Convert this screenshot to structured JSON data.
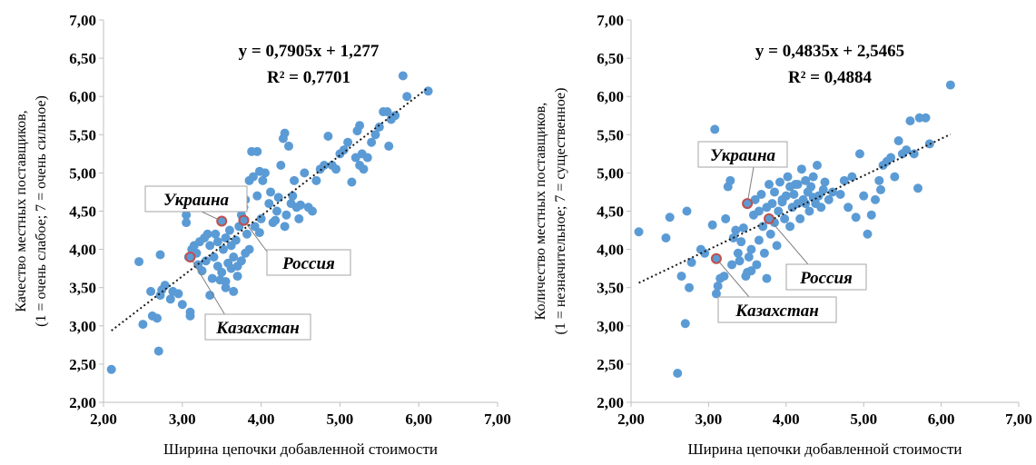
{
  "colors": {
    "point": "#5b9bd5",
    "highlight_stroke": "#c0504d",
    "trend": "#1a1a1a",
    "axis": "#bfbfbf"
  },
  "chart_data": [
    {
      "type": "scatter",
      "xlabel": "Ширина цепочки добавленной стоимости",
      "ylabel_line1": "Качество местных поставщиков,",
      "ylabel_line2": "(1 = очень слабое; 7 = очень сильное)",
      "xlim": [
        2,
        7
      ],
      "ylim": [
        2,
        7
      ],
      "xticks": [
        "2,00",
        "3,00",
        "4,00",
        "5,00",
        "6,00",
        "7,00"
      ],
      "yticks": [
        "2,00",
        "2,50",
        "3,00",
        "3,50",
        "4,00",
        "4,50",
        "5,00",
        "5,50",
        "6,00",
        "6,50",
        "7,00"
      ],
      "grid": false,
      "trendline": {
        "equation": "y = 0,7905x + 1,277",
        "r2": "R² = 0,7701",
        "slope": 0.7905,
        "intercept": 1.277
      },
      "highlights": [
        {
          "label": "Украина",
          "x": 3.5,
          "y": 4.37
        },
        {
          "label": "Россия",
          "x": 3.78,
          "y": 4.38
        },
        {
          "label": "Казахстан",
          "x": 3.1,
          "y": 3.9
        }
      ],
      "points": [
        [
          2.1,
          2.43
        ],
        [
          2.45,
          3.84
        ],
        [
          2.5,
          3.02
        ],
        [
          2.6,
          3.45
        ],
        [
          2.62,
          3.13
        ],
        [
          2.68,
          3.1
        ],
        [
          2.7,
          2.67
        ],
        [
          2.72,
          3.4
        ],
        [
          2.74,
          3.47
        ],
        [
          2.78,
          3.53
        ],
        [
          2.72,
          3.93
        ],
        [
          2.85,
          3.35
        ],
        [
          2.88,
          3.45
        ],
        [
          2.95,
          3.42
        ],
        [
          3.0,
          3.28
        ],
        [
          3.05,
          4.45
        ],
        [
          3.05,
          4.35
        ],
        [
          3.1,
          3.13
        ],
        [
          3.1,
          3.18
        ],
        [
          3.08,
          3.9
        ],
        [
          3.12,
          4.0
        ],
        [
          3.15,
          4.05
        ],
        [
          3.18,
          3.95
        ],
        [
          3.2,
          3.8
        ],
        [
          3.22,
          4.1
        ],
        [
          3.25,
          3.72
        ],
        [
          3.28,
          4.15
        ],
        [
          3.3,
          3.85
        ],
        [
          3.32,
          4.2
        ],
        [
          3.35,
          3.4
        ],
        [
          3.35,
          4.05
        ],
        [
          3.38,
          3.62
        ],
        [
          3.4,
          3.9
        ],
        [
          3.42,
          4.2
        ],
        [
          3.45,
          3.78
        ],
        [
          3.45,
          4.1
        ],
        [
          3.48,
          3.6
        ],
        [
          3.5,
          3.7
        ],
        [
          3.52,
          4.0
        ],
        [
          3.55,
          4.15
        ],
        [
          3.55,
          3.5
        ],
        [
          3.58,
          3.82
        ],
        [
          3.6,
          4.25
        ],
        [
          3.62,
          3.75
        ],
        [
          3.62,
          4.05
        ],
        [
          3.65,
          3.9
        ],
        [
          3.68,
          4.12
        ],
        [
          3.7,
          3.65
        ],
        [
          3.72,
          4.3
        ],
        [
          3.75,
          3.85
        ],
        [
          3.75,
          4.45
        ],
        [
          3.78,
          4.55
        ],
        [
          3.8,
          4.65
        ],
        [
          3.8,
          3.95
        ],
        [
          3.82,
          4.2
        ],
        [
          3.85,
          4.9
        ],
        [
          3.85,
          4.0
        ],
        [
          3.88,
          5.28
        ],
        [
          3.9,
          4.95
        ],
        [
          3.92,
          4.3
        ],
        [
          3.95,
          5.28
        ],
        [
          3.95,
          4.7
        ],
        [
          3.98,
          5.02
        ],
        [
          4.0,
          4.4
        ],
        [
          4.02,
          4.9
        ],
        [
          4.05,
          5.0
        ],
        [
          4.1,
          4.6
        ],
        [
          4.12,
          4.75
        ],
        [
          4.15,
          4.35
        ],
        [
          4.2,
          4.5
        ],
        [
          4.22,
          4.68
        ],
        [
          4.25,
          5.1
        ],
        [
          4.28,
          5.45
        ],
        [
          4.3,
          5.52
        ],
        [
          4.3,
          4.3
        ],
        [
          4.32,
          4.45
        ],
        [
          4.35,
          5.35
        ],
        [
          4.38,
          4.6
        ],
        [
          4.4,
          4.7
        ],
        [
          4.42,
          4.9
        ],
        [
          4.45,
          4.55
        ],
        [
          4.48,
          4.4
        ],
        [
          4.5,
          4.58
        ],
        [
          4.55,
          5.0
        ],
        [
          4.6,
          4.55
        ],
        [
          4.65,
          4.5
        ],
        [
          4.7,
          4.9
        ],
        [
          4.75,
          5.05
        ],
        [
          4.8,
          5.1
        ],
        [
          4.85,
          5.48
        ],
        [
          4.9,
          5.1
        ],
        [
          4.95,
          5.05
        ],
        [
          5.0,
          5.25
        ],
        [
          5.05,
          5.3
        ],
        [
          5.1,
          5.4
        ],
        [
          5.15,
          4.88
        ],
        [
          5.2,
          5.2
        ],
        [
          5.22,
          5.55
        ],
        [
          5.25,
          5.62
        ],
        [
          5.28,
          5.25
        ],
        [
          5.3,
          5.05
        ],
        [
          5.35,
          5.2
        ],
        [
          5.4,
          5.4
        ],
        [
          5.45,
          5.5
        ],
        [
          5.5,
          5.6
        ],
        [
          5.55,
          5.8
        ],
        [
          5.6,
          5.8
        ],
        [
          5.62,
          5.35
        ],
        [
          5.65,
          5.7
        ],
        [
          5.7,
          5.75
        ],
        [
          5.8,
          6.27
        ],
        [
          5.85,
          6.0
        ],
        [
          6.12,
          6.07
        ],
        [
          5.25,
          5.1
        ],
        [
          4.18,
          4.38
        ],
        [
          3.98,
          4.22
        ],
        [
          3.65,
          3.45
        ],
        [
          3.55,
          3.58
        ],
        [
          3.7,
          3.78
        ]
      ]
    },
    {
      "type": "scatter",
      "xlabel": "Ширина цепочки добавленной стоимости",
      "ylabel_line1": "Количество местных поставщиков,",
      "ylabel_line2": "(1 = незначительное; 7 = существенное)",
      "xlim": [
        2,
        7
      ],
      "ylim": [
        2,
        7
      ],
      "xticks": [
        "2,00",
        "3,00",
        "4,00",
        "5,00",
        "6,00",
        "7,00"
      ],
      "yticks": [
        "2,00",
        "2,50",
        "3,00",
        "3,50",
        "4,00",
        "4,50",
        "5,00",
        "5,50",
        "6,00",
        "6,50",
        "7,00"
      ],
      "grid": false,
      "trendline": {
        "equation": "y = 0,4835x + 2,5465",
        "r2": "R² = 0,4884",
        "slope": 0.4835,
        "intercept": 2.5465
      },
      "highlights": [
        {
          "label": "Украина",
          "x": 3.5,
          "y": 4.6
        },
        {
          "label": "Россия",
          "x": 3.78,
          "y": 4.4
        },
        {
          "label": "Казахстан",
          "x": 3.1,
          "y": 3.88
        }
      ],
      "points": [
        [
          2.1,
          4.23
        ],
        [
          2.45,
          4.15
        ],
        [
          2.5,
          4.42
        ],
        [
          2.6,
          2.38
        ],
        [
          2.65,
          3.65
        ],
        [
          2.7,
          3.03
        ],
        [
          2.72,
          4.5
        ],
        [
          2.75,
          3.5
        ],
        [
          2.78,
          3.83
        ],
        [
          2.9,
          4.0
        ],
        [
          2.95,
          3.95
        ],
        [
          3.05,
          4.32
        ],
        [
          3.08,
          5.57
        ],
        [
          3.1,
          3.42
        ],
        [
          3.12,
          3.52
        ],
        [
          3.15,
          3.62
        ],
        [
          3.2,
          3.65
        ],
        [
          3.22,
          4.4
        ],
        [
          3.25,
          4.82
        ],
        [
          3.28,
          4.9
        ],
        [
          3.3,
          3.8
        ],
        [
          3.32,
          4.15
        ],
        [
          3.35,
          4.25
        ],
        [
          3.38,
          3.95
        ],
        [
          3.4,
          3.85
        ],
        [
          3.42,
          4.1
        ],
        [
          3.45,
          4.28
        ],
        [
          3.48,
          3.65
        ],
        [
          3.5,
          3.7
        ],
        [
          3.52,
          3.9
        ],
        [
          3.55,
          4.0
        ],
        [
          3.58,
          4.45
        ],
        [
          3.6,
          4.65
        ],
        [
          3.62,
          3.8
        ],
        [
          3.65,
          4.5
        ],
        [
          3.68,
          4.72
        ],
        [
          3.7,
          4.3
        ],
        [
          3.72,
          3.95
        ],
        [
          3.75,
          4.55
        ],
        [
          3.75,
          3.62
        ],
        [
          3.78,
          4.85
        ],
        [
          3.8,
          4.2
        ],
        [
          3.82,
          4.6
        ],
        [
          3.85,
          4.75
        ],
        [
          3.88,
          4.05
        ],
        [
          3.9,
          4.5
        ],
        [
          3.92,
          4.88
        ],
        [
          3.95,
          4.65
        ],
        [
          3.98,
          4.4
        ],
        [
          4.0,
          4.7
        ],
        [
          4.02,
          4.95
        ],
        [
          4.05,
          4.3
        ],
        [
          4.08,
          4.55
        ],
        [
          4.1,
          4.72
        ],
        [
          4.12,
          4.85
        ],
        [
          4.15,
          4.6
        ],
        [
          4.18,
          4.4
        ],
        [
          4.2,
          5.05
        ],
        [
          4.22,
          4.65
        ],
        [
          4.25,
          4.9
        ],
        [
          4.28,
          4.75
        ],
        [
          4.3,
          4.5
        ],
        [
          4.32,
          4.82
        ],
        [
          4.35,
          4.95
        ],
        [
          4.38,
          4.6
        ],
        [
          4.4,
          5.1
        ],
        [
          4.42,
          4.7
        ],
        [
          4.45,
          4.55
        ],
        [
          4.48,
          4.78
        ],
        [
          4.5,
          4.88
        ],
        [
          4.55,
          4.65
        ],
        [
          4.6,
          4.75
        ],
        [
          4.7,
          4.72
        ],
        [
          4.75,
          4.9
        ],
        [
          4.8,
          4.55
        ],
        [
          4.85,
          4.95
        ],
        [
          4.9,
          4.42
        ],
        [
          4.95,
          5.25
        ],
        [
          5.0,
          4.7
        ],
        [
          5.05,
          4.2
        ],
        [
          5.1,
          4.45
        ],
        [
          5.15,
          4.65
        ],
        [
          5.2,
          4.9
        ],
        [
          5.22,
          4.78
        ],
        [
          5.25,
          5.1
        ],
        [
          5.3,
          5.15
        ],
        [
          5.35,
          5.2
        ],
        [
          5.4,
          4.95
        ],
        [
          5.45,
          5.42
        ],
        [
          5.5,
          5.25
        ],
        [
          5.55,
          5.3
        ],
        [
          5.6,
          5.68
        ],
        [
          5.65,
          5.25
        ],
        [
          5.7,
          4.8
        ],
        [
          5.72,
          5.72
        ],
        [
          5.8,
          5.72
        ],
        [
          5.85,
          5.38
        ],
        [
          6.12,
          6.15
        ],
        [
          3.95,
          4.62
        ],
        [
          4.05,
          4.82
        ],
        [
          4.25,
          4.6
        ],
        [
          3.65,
          4.12
        ],
        [
          4.35,
          4.68
        ],
        [
          4.15,
          4.85
        ],
        [
          3.55,
          3.72
        ],
        [
          3.85,
          4.35
        ]
      ]
    }
  ]
}
